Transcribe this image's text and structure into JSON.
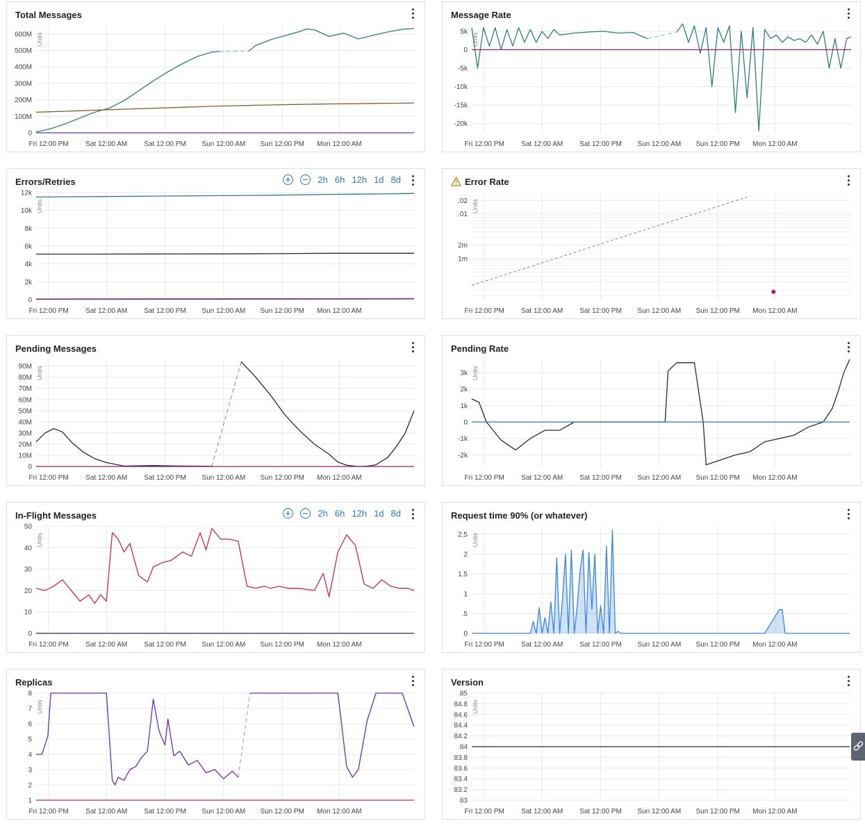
{
  "x_ticks": [
    "Fri 12:00 PM",
    "Sat 12:00 AM",
    "Sat 12:00 PM",
    "Sun 12:00 AM",
    "Sun 12:00 PM",
    "Mon 12:00 AM"
  ],
  "units_label": "Units",
  "range_buttons": [
    "2h",
    "6h",
    "12h",
    "1d",
    "8d"
  ],
  "icons": {
    "menu": "kebab-menu-icon",
    "zoom_in": "zoom-in-icon",
    "zoom_out": "zoom-out-icon",
    "warning": "warning-triangle-icon",
    "side_tab": "link-icon"
  },
  "colors": {
    "teal": "#2e7d7e",
    "brown": "#8b5a2b",
    "purple": "#6f2da8",
    "navy": "#1d2b4f",
    "crimson": "#c8284e",
    "blue": "#3b86d8",
    "magenta": "#9b1c5a",
    "link": "#2a7ab5"
  },
  "panels": [
    {
      "title": "Total Messages"
    },
    {
      "title": "Message Rate"
    },
    {
      "title": "Errors/Retries"
    },
    {
      "title": "Error Rate"
    },
    {
      "title": "Pending Messages"
    },
    {
      "title": "Pending Rate"
    },
    {
      "title": "In-Flight Messages"
    },
    {
      "title": "Request time 90% (or whatever)"
    },
    {
      "title": "Replicas"
    },
    {
      "title": "Version"
    }
  ],
  "chart_data": [
    {
      "type": "line",
      "title": "Total Messages",
      "ylabel": "Units",
      "ylim": [
        0,
        650000000
      ],
      "y_ticks": [
        "0",
        "100M",
        "200M",
        "300M",
        "400M",
        "500M",
        "600M"
      ],
      "x": [
        0,
        0.5,
        1,
        1.5,
        2,
        2.5,
        3,
        3.5,
        4,
        4.5,
        5,
        5.5,
        6,
        6.25,
        6.5,
        7,
        7.25,
        7.5,
        8,
        8.5,
        9,
        9.25,
        9.5,
        10,
        10.5,
        11,
        11.5,
        12,
        12.5,
        12.9
      ],
      "series": [
        {
          "color": "#2e7d7e",
          "values": [
            5000000,
            25000000,
            55000000,
            90000000,
            125000000,
            150000000,
            195000000,
            255000000,
            315000000,
            370000000,
            420000000,
            463000000,
            490000000,
            493000000,
            null,
            null,
            495000000,
            530000000,
            565000000,
            590000000,
            615000000,
            630000000,
            625000000,
            585000000,
            605000000,
            570000000,
            592000000,
            612000000,
            628000000,
            633000000
          ]
        },
        {
          "color": "#8b5a2b",
          "values": [
            125000000,
            128000000,
            131000000,
            134000000,
            137000000,
            140000000,
            143000000,
            146000000,
            149000000,
            152000000,
            155000000,
            158000000,
            161000000,
            162000000,
            163000000,
            165000000,
            166000000,
            167000000,
            169000000,
            171000000,
            172000000,
            173000000,
            174000000,
            175000000,
            176000000,
            177000000,
            178000000,
            179000000,
            180000000,
            181000000
          ]
        },
        {
          "color": "#6f2da8",
          "values": [
            0,
            0,
            0,
            0,
            0,
            0,
            0,
            0,
            0,
            0,
            0,
            0,
            0,
            0,
            0,
            0,
            0,
            0,
            0,
            0,
            0,
            0,
            0,
            0,
            0,
            0,
            0,
            0,
            0,
            0
          ]
        }
      ]
    },
    {
      "type": "line",
      "title": "Message Rate",
      "ylabel": "Units",
      "ylim": [
        -22500,
        6500
      ],
      "y_ticks": [
        "-20k",
        "-15k",
        "-10k",
        "-5k",
        "0",
        "5k"
      ],
      "x": [
        0,
        0.2,
        0.4,
        0.6,
        0.8,
        1,
        1.2,
        1.4,
        1.6,
        1.8,
        2,
        2.2,
        2.4,
        2.6,
        2.8,
        3,
        3.5,
        4,
        4.5,
        5,
        5.5,
        6,
        6.5,
        7,
        7.2,
        7.4,
        7.6,
        7.8,
        8,
        8.2,
        8.4,
        8.6,
        8.8,
        9,
        9.2,
        9.4,
        9.6,
        9.8,
        10,
        10.2,
        10.4,
        10.6,
        10.8,
        11,
        11.2,
        11.4,
        11.6,
        11.8,
        12,
        12.2,
        12.4,
        12.6,
        12.8,
        12.95
      ],
      "series": [
        {
          "color": "#2e7d7e",
          "values": [
            6000,
            -5000,
            6000,
            1000,
            6000,
            0,
            5500,
            1000,
            6000,
            2000,
            5500,
            2000,
            5000,
            3000,
            5500,
            4000,
            4500,
            4800,
            5000,
            4500,
            4700,
            3000,
            null,
            4800,
            7000,
            2000,
            6500,
            -1000,
            6000,
            -10000,
            6000,
            2000,
            6500,
            -17000,
            5000,
            -13000,
            6000,
            -22000,
            5500,
            3000,
            4000,
            2000,
            3500,
            2500,
            3000,
            2000,
            4000,
            1500,
            5000,
            -5000,
            3000,
            -5000,
            3000,
            3500
          ]
        },
        {
          "color": "#9b1c5a",
          "values": [
            0,
            0,
            0,
            0,
            0,
            0,
            0,
            0,
            0,
            0,
            0,
            0,
            0,
            0,
            0,
            0,
            0,
            0,
            0,
            0,
            0,
            0,
            0,
            0,
            0,
            0,
            0,
            0,
            0,
            0,
            0,
            0,
            0,
            0,
            0,
            0,
            0,
            0,
            0,
            0,
            0,
            0,
            0,
            0,
            0,
            0,
            0,
            0,
            0,
            0,
            0,
            0,
            0,
            0
          ]
        }
      ]
    },
    {
      "type": "line",
      "title": "Errors/Retries",
      "ylabel": "Units",
      "ylim": [
        0,
        12000
      ],
      "y_ticks": [
        "0",
        "2k",
        "4k",
        "6k",
        "8k",
        "10k",
        "12k"
      ],
      "x": [
        0,
        2,
        4,
        6,
        8,
        10,
        12,
        12.9
      ],
      "series": [
        {
          "color": "#2e7d7e",
          "values": [
            11500,
            11550,
            11600,
            11650,
            11700,
            11800,
            11850,
            11900
          ]
        },
        {
          "color": "#1d2b4f",
          "values": [
            5100,
            5100,
            5120,
            5130,
            5150,
            5200,
            5200,
            5200
          ]
        },
        {
          "color": "#8b5a2b",
          "values": [
            80,
            85,
            90,
            95,
            100,
            110,
            120,
            125
          ]
        },
        {
          "color": "#6f2da8",
          "values": [
            40,
            45,
            50,
            55,
            60,
            70,
            80,
            85
          ]
        }
      ]
    },
    {
      "type": "line",
      "title": "Error Rate",
      "ylabel": "Units",
      "scale": "log",
      "y_ticks": [
        "1m",
        "2m",
        ".01",
        ".02"
      ],
      "x": [
        0,
        9.5
      ],
      "series": [
        {
          "color": "#b07c6b",
          "values": [
            0.00025,
            0.025
          ]
        }
      ],
      "points": [
        {
          "x": 10.3,
          "y": 0.00018,
          "color": "#9b1c5a"
        }
      ]
    },
    {
      "type": "line",
      "title": "Pending Messages",
      "ylabel": "Units",
      "ylim": [
        0,
        96000000
      ],
      "y_ticks": [
        "0",
        "10M",
        "20M",
        "30M",
        "40M",
        "50M",
        "60M",
        "70M",
        "80M",
        "90M"
      ],
      "x": [
        0,
        0.3,
        0.6,
        0.9,
        1.2,
        1.6,
        2,
        2.4,
        3,
        4,
        5,
        6,
        6.7,
        7,
        7.5,
        8,
        8.5,
        9,
        9.5,
        10,
        10.3,
        10.6,
        11,
        11.3,
        11.6,
        12,
        12.3,
        12.6,
        12.9
      ],
      "series": [
        {
          "color": "#1d2b4f",
          "values": [
            22000000,
            30000000,
            34000000,
            31000000,
            22000000,
            13000000,
            7000000,
            3500000,
            400000,
            800000,
            400000,
            200000,
            null,
            94000000,
            80000000,
            64000000,
            46000000,
            32000000,
            20000000,
            11000000,
            4000000,
            1200000,
            0,
            300000,
            1500000,
            8000000,
            18000000,
            30000000,
            50000000
          ]
        },
        {
          "color": "#9b1c5a",
          "values": [
            0,
            0,
            0,
            0,
            0,
            0,
            0,
            0,
            0,
            0,
            0,
            0,
            0,
            0,
            0,
            0,
            0,
            0,
            0,
            0,
            0,
            0,
            0,
            0,
            0,
            0,
            0,
            0,
            0
          ]
        }
      ]
    },
    {
      "type": "line",
      "title": "Pending Rate",
      "ylabel": "Units",
      "ylim": [
        -2700,
        3800
      ],
      "y_ticks": [
        "-2k",
        "-1k",
        "0",
        "1k",
        "2k",
        "3k"
      ],
      "x": [
        0,
        0.25,
        0.5,
        1,
        1.5,
        2,
        2.5,
        3,
        3.5,
        4,
        4.5,
        5,
        5.5,
        6,
        6.5,
        6.6,
        6.7,
        7,
        7.3,
        7.4,
        7.6,
        7.9,
        8,
        8.5,
        9,
        9.5,
        10,
        10.5,
        11,
        11.5,
        12,
        12.3,
        12.5,
        12.7,
        12.9
      ],
      "series": [
        {
          "color": "#1d2b4f",
          "values": [
            1400,
            1200,
            0,
            -1100,
            -1700,
            -1000,
            -500,
            -500,
            0,
            0,
            0,
            0,
            0,
            0,
            0,
            0,
            3100,
            3600,
            3600,
            3600,
            3600,
            0,
            -2600,
            -2300,
            -2000,
            -1800,
            -1200,
            -1000,
            -800,
            -300,
            0,
            800,
            1800,
            3000,
            3800
          ]
        },
        {
          "color": "#2a7ab5",
          "values": [
            0,
            0,
            0,
            0,
            0,
            0,
            0,
            0,
            0,
            0,
            0,
            0,
            0,
            0,
            0,
            0,
            0,
            0,
            0,
            0,
            0,
            0,
            0,
            0,
            0,
            0,
            0,
            0,
            0,
            0,
            0,
            0,
            0,
            0,
            0
          ]
        }
      ]
    },
    {
      "type": "line",
      "title": "In-Flight Messages",
      "ylabel": "Units",
      "ylim": [
        0,
        50
      ],
      "y_ticks": [
        "0",
        "10",
        "20",
        "30",
        "40",
        "50"
      ],
      "x": [
        0,
        0.3,
        0.6,
        0.9,
        1.2,
        1.5,
        1.8,
        2,
        2.2,
        2.4,
        2.6,
        2.8,
        3,
        3.2,
        3.5,
        3.8,
        4,
        4.3,
        4.6,
        5,
        5.3,
        5.6,
        5.8,
        6,
        6.3,
        6.6,
        6.9,
        7.2,
        7.5,
        7.8,
        8,
        8.3,
        8.6,
        9,
        9.5,
        9.8,
        10,
        10.3,
        10.6,
        10.9,
        11.2,
        11.5,
        11.8,
        12.1,
        12.4,
        12.7,
        12.9
      ],
      "series": [
        {
          "color": "#c8284e",
          "values": [
            21,
            20,
            22,
            25,
            20,
            15,
            18,
            14,
            18,
            15,
            47,
            44,
            38,
            42,
            27,
            24,
            31,
            33,
            34,
            38,
            36,
            47,
            39,
            49,
            44,
            44,
            43,
            22,
            21,
            22,
            21,
            22,
            21,
            21,
            20,
            28,
            17,
            38,
            46,
            41,
            23,
            21,
            25,
            22,
            21,
            21,
            20
          ]
        },
        {
          "color": "#1d2b4f",
          "values": [
            0,
            0,
            0,
            0,
            0,
            0,
            0,
            0,
            0,
            0,
            0,
            0,
            0,
            0,
            0,
            0,
            0,
            0,
            0,
            0,
            0,
            0,
            0,
            0,
            0,
            0,
            0,
            0,
            0,
            0,
            0,
            0,
            0,
            0,
            0,
            0,
            0,
            0,
            0,
            0,
            0,
            0,
            0,
            0,
            0,
            0,
            0
          ]
        }
      ]
    },
    {
      "type": "area",
      "title": "Request time 90% (or whatever)",
      "ylabel": "Units",
      "ylim": [
        0,
        2.7
      ],
      "y_ticks": [
        "0",
        ".5",
        "1",
        "1.5",
        "2",
        "2.5"
      ],
      "x": [
        0,
        2,
        2.1,
        2.2,
        2.3,
        2.4,
        2.5,
        2.6,
        2.7,
        2.8,
        2.9,
        3,
        3.1,
        3.2,
        3.3,
        3.4,
        3.5,
        3.6,
        3.7,
        3.8,
        3.9,
        4,
        4.1,
        4.2,
        4.3,
        4.4,
        4.5,
        4.6,
        4.7,
        4.8,
        4.9,
        5,
        5.1,
        5.2,
        5.5,
        6,
        7,
        8,
        9,
        10,
        10.5,
        10.6,
        10.7,
        11,
        12,
        12.9
      ],
      "series": [
        {
          "color": "#3b86d8",
          "values": [
            0,
            0,
            0.3,
            0,
            0.65,
            0,
            0.4,
            0,
            0.8,
            0,
            1.9,
            0,
            0.9,
            2.0,
            0,
            2.1,
            0,
            0.7,
            1.6,
            2.1,
            0,
            2.05,
            0.6,
            2.0,
            0,
            0.7,
            0,
            2.2,
            0,
            2.6,
            0,
            0.05,
            0,
            0,
            0,
            0,
            0,
            0,
            0,
            0,
            0.6,
            0.6,
            0,
            0,
            0,
            0
          ]
        }
      ]
    },
    {
      "type": "line",
      "title": "Replicas",
      "ylabel": "Units",
      "ylim": [
        1,
        8
      ],
      "y_ticks": [
        "1",
        "2",
        "3",
        "4",
        "5",
        "6",
        "7",
        "8"
      ],
      "x": [
        0,
        0.2,
        0.4,
        0.5,
        0.7,
        1,
        1.5,
        2,
        2.4,
        2.6,
        2.7,
        2.8,
        3,
        3.2,
        3.4,
        3.6,
        3.8,
        4,
        4.2,
        4.4,
        4.5,
        4.7,
        4.9,
        5.2,
        5.5,
        5.8,
        6.1,
        6.4,
        6.7,
        6.9,
        7,
        7.3,
        7.6,
        8,
        9,
        10,
        10.3,
        10.6,
        10.8,
        11,
        11.3,
        11.6,
        12,
        12.5,
        12.9
      ],
      "series": [
        {
          "color": "#6f2da8",
          "values": [
            4,
            4,
            5.2,
            8,
            8,
            8,
            8,
            8,
            8,
            2.3,
            2,
            2.5,
            2.3,
            3,
            3.2,
            3.8,
            4.2,
            7.6,
            5.5,
            4.6,
            6.3,
            3.9,
            4.2,
            3.3,
            3.6,
            2.8,
            3.0,
            2.4,
            2.9,
            2.5,
            null,
            8,
            8,
            8,
            8,
            8,
            8,
            3.2,
            2.5,
            3.0,
            6.2,
            8,
            8,
            8,
            5.8
          ]
        },
        {
          "color": "#c8284e",
          "values": [
            1,
            1,
            1,
            1,
            1,
            1,
            1,
            1,
            1,
            1,
            1,
            1,
            1,
            1,
            1,
            1,
            1,
            1,
            1,
            1,
            1,
            1,
            1,
            1,
            1,
            1,
            1,
            1,
            1,
            1,
            1,
            1,
            1,
            1,
            1,
            1,
            1,
            1,
            1,
            1,
            1,
            1,
            1,
            1,
            1
          ]
        }
      ]
    },
    {
      "type": "line",
      "title": "Version",
      "ylabel": "Units",
      "ylim": [
        83,
        85
      ],
      "y_ticks": [
        "83",
        "83.2",
        "83.4",
        "83.6",
        "83.8",
        "84",
        "84.2",
        "84.4",
        "84.6",
        "84.8",
        "85"
      ],
      "x": [
        0,
        12.9
      ],
      "series": [
        {
          "color": "#1d2b4f",
          "values": [
            84,
            84
          ]
        }
      ]
    }
  ]
}
